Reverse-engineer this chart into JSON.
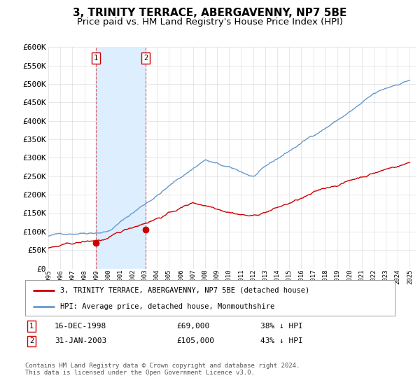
{
  "title": "3, TRINITY TERRACE, ABERGAVENNY, NP7 5BE",
  "subtitle": "Price paid vs. HM Land Registry's House Price Index (HPI)",
  "title_fontsize": 11,
  "subtitle_fontsize": 9.5,
  "ylim": [
    0,
    600000
  ],
  "yticks": [
    0,
    50000,
    100000,
    150000,
    200000,
    250000,
    300000,
    350000,
    400000,
    450000,
    500000,
    550000,
    600000
  ],
  "ytick_labels": [
    "£0",
    "£50K",
    "£100K",
    "£150K",
    "£200K",
    "£250K",
    "£300K",
    "£350K",
    "£400K",
    "£450K",
    "£500K",
    "£550K",
    "£600K"
  ],
  "purchase1_date_num": 1998.96,
  "purchase1_price": 69000,
  "purchase2_date_num": 2003.08,
  "purchase2_price": 105000,
  "purchase1_label": "16-DEC-1998",
  "purchase2_label": "31-JAN-2003",
  "purchase1_pct": "38% ↓ HPI",
  "purchase2_pct": "43% ↓ HPI",
  "purchase1_amount": "£69,000",
  "purchase2_amount": "£105,000",
  "hpi_color": "#6699cc",
  "price_color": "#cc0000",
  "marker_color": "#cc0000",
  "shade_color": "#ddeeff",
  "grid_color": "#bbbbbb",
  "background_color": "#ffffff",
  "legend_label_price": "3, TRINITY TERRACE, ABERGAVENNY, NP7 5BE (detached house)",
  "legend_label_hpi": "HPI: Average price, detached house, Monmouthshire",
  "footer": "Contains HM Land Registry data © Crown copyright and database right 2024.\nThis data is licensed under the Open Government Licence v3.0.",
  "xlim_start": 1995,
  "xlim_end": 2025.5
}
